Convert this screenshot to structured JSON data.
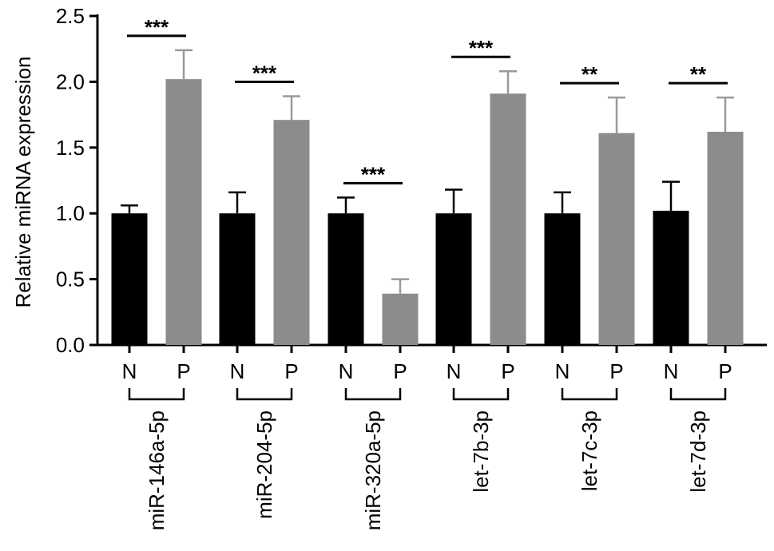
{
  "chart_data": {
    "type": "bar",
    "ylabel": "Relative miRNA expression",
    "ylim": [
      0,
      2.5
    ],
    "yticks": [
      "0.0",
      "0.5",
      "1.0",
      "1.5",
      "2.0",
      "2.5"
    ],
    "group_labels": [
      "N",
      "P"
    ],
    "colors": {
      "N": "#000000",
      "P": "#8c8c8c"
    },
    "grid": false,
    "legend": "none",
    "categories": [
      {
        "label": "miR-146a-5p",
        "N": {
          "value": 1.0,
          "sd": 0.06
        },
        "P": {
          "value": 2.02,
          "sd": 0.22
        },
        "significance": "***"
      },
      {
        "label": "miR-204-5p",
        "N": {
          "value": 1.0,
          "sd": 0.16
        },
        "P": {
          "value": 1.71,
          "sd": 0.18
        },
        "significance": "***"
      },
      {
        "label": "miR-320a-5p",
        "N": {
          "value": 1.0,
          "sd": 0.12
        },
        "P": {
          "value": 0.39,
          "sd": 0.11
        },
        "significance": "***"
      },
      {
        "label": "let-7b-3p",
        "N": {
          "value": 1.0,
          "sd": 0.18
        },
        "P": {
          "value": 1.91,
          "sd": 0.17
        },
        "significance": "***"
      },
      {
        "label": "let-7c-3p",
        "N": {
          "value": 1.0,
          "sd": 0.16
        },
        "P": {
          "value": 1.61,
          "sd": 0.27
        },
        "significance": "**"
      },
      {
        "label": "let-7d-3p",
        "N": {
          "value": 1.02,
          "sd": 0.22
        },
        "P": {
          "value": 1.62,
          "sd": 0.26
        },
        "significance": "**"
      }
    ]
  }
}
